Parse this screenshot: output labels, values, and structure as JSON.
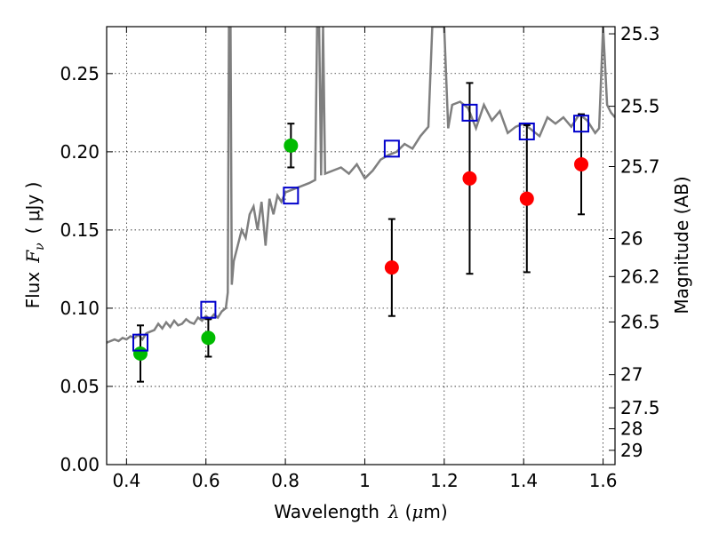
{
  "chart_data": {
    "type": "scatter",
    "xlabel": {
      "prefix": "Wavelength",
      "symbol": "λ",
      "unit_open": "(",
      "unit_mu": "μ",
      "unit_rest": "m)"
    },
    "ylabel": {
      "prefix": "Flux",
      "symbol": "F",
      "subscript": "ν",
      "unit": "( μJy )"
    },
    "y2label": "Magnitude (AB)",
    "xlim": [
      0.35,
      1.63
    ],
    "ylim": [
      0.0,
      0.28
    ],
    "xticks": [
      "0.4",
      "0.6",
      "0.8",
      "1",
      "1.2",
      "1.4",
      "1.6"
    ],
    "xtick_values": [
      0.4,
      0.6,
      0.8,
      1.0,
      1.2,
      1.4,
      1.6
    ],
    "yticks": [
      "0.00",
      "0.05",
      "0.10",
      "0.15",
      "0.20",
      "0.25"
    ],
    "ytick_values": [
      0.0,
      0.05,
      0.1,
      0.15,
      0.2,
      0.25
    ],
    "mag_ticks": [
      "25.3",
      "25.5",
      "25.7",
      "26",
      "26.2",
      "26.5",
      "27",
      "27.5",
      "28",
      "29"
    ],
    "mag_tick_values": [
      25.3,
      25.5,
      25.7,
      26,
      26.2,
      26.5,
      27,
      27.5,
      28,
      29
    ],
    "grid": true,
    "colors": {
      "green": "#00bb00",
      "red": "#ff0000",
      "blue": "#0000cc",
      "spectrum": "#7f7f7f",
      "errorbar": "#000000"
    },
    "series": [
      {
        "color": "green",
        "marker": "circle",
        "points": [
          {
            "x": 0.435,
            "y": 0.071,
            "err_lo": 0.018,
            "err_hi": 0.018
          },
          {
            "x": 0.606,
            "y": 0.081,
            "err_lo": 0.012,
            "err_hi": 0.012
          },
          {
            "x": 0.814,
            "y": 0.204,
            "err_lo": 0.014,
            "err_hi": 0.014
          }
        ]
      },
      {
        "color": "red",
        "marker": "circle",
        "points": [
          {
            "x": 1.068,
            "y": 0.126,
            "err_lo": 0.031,
            "err_hi": 0.031
          },
          {
            "x": 1.264,
            "y": 0.183,
            "err_lo": 0.061,
            "err_hi": 0.061
          },
          {
            "x": 1.408,
            "y": 0.17,
            "err_lo": 0.047,
            "err_hi": 0.047
          },
          {
            "x": 1.545,
            "y": 0.192,
            "err_lo": 0.032,
            "err_hi": 0.032
          }
        ]
      },
      {
        "color": "blue",
        "marker": "open-square",
        "points": [
          {
            "x": 0.435,
            "y": 0.078
          },
          {
            "x": 0.606,
            "y": 0.099
          },
          {
            "x": 0.814,
            "y": 0.172
          },
          {
            "x": 1.068,
            "y": 0.202
          },
          {
            "x": 1.264,
            "y": 0.225
          },
          {
            "x": 1.408,
            "y": 0.213
          },
          {
            "x": 1.545,
            "y": 0.218
          }
        ]
      },
      {
        "color": "spectrum",
        "marker": "line",
        "x": [
          0.35,
          0.36,
          0.37,
          0.38,
          0.39,
          0.4,
          0.41,
          0.42,
          0.43,
          0.44,
          0.45,
          0.46,
          0.47,
          0.48,
          0.49,
          0.5,
          0.51,
          0.52,
          0.53,
          0.54,
          0.55,
          0.56,
          0.57,
          0.58,
          0.59,
          0.6,
          0.61,
          0.62,
          0.63,
          0.64,
          0.65,
          0.655,
          0.658,
          0.662,
          0.665,
          0.67,
          0.68,
          0.69,
          0.7,
          0.71,
          0.72,
          0.73,
          0.74,
          0.75,
          0.76,
          0.77,
          0.78,
          0.79,
          0.8,
          0.82,
          0.84,
          0.86,
          0.875,
          0.88,
          0.885,
          0.89,
          0.895,
          0.9,
          0.92,
          0.94,
          0.96,
          0.98,
          1.0,
          1.02,
          1.04,
          1.06,
          1.08,
          1.1,
          1.12,
          1.14,
          1.16,
          1.17,
          1.18,
          1.19,
          1.2,
          1.21,
          1.22,
          1.24,
          1.26,
          1.28,
          1.3,
          1.32,
          1.34,
          1.36,
          1.38,
          1.4,
          1.42,
          1.44,
          1.46,
          1.48,
          1.5,
          1.52,
          1.54,
          1.56,
          1.58,
          1.59,
          1.6,
          1.61,
          1.62,
          1.63
        ],
        "y": [
          0.078,
          0.079,
          0.08,
          0.079,
          0.081,
          0.08,
          0.082,
          0.081,
          0.083,
          0.08,
          0.084,
          0.085,
          0.086,
          0.09,
          0.087,
          0.091,
          0.088,
          0.092,
          0.089,
          0.09,
          0.093,
          0.091,
          0.09,
          0.094,
          0.092,
          0.095,
          0.093,
          0.096,
          0.094,
          0.098,
          0.1,
          0.11,
          0.28,
          0.28,
          0.115,
          0.13,
          0.14,
          0.15,
          0.145,
          0.16,
          0.165,
          0.15,
          0.168,
          0.14,
          0.17,
          0.16,
          0.172,
          0.168,
          0.174,
          0.176,
          0.178,
          0.18,
          0.182,
          0.28,
          0.28,
          0.185,
          0.28,
          0.186,
          0.188,
          0.19,
          0.186,
          0.192,
          0.183,
          0.188,
          0.195,
          0.198,
          0.2,
          0.205,
          0.202,
          0.21,
          0.216,
          0.28,
          0.28,
          0.28,
          0.28,
          0.215,
          0.23,
          0.232,
          0.228,
          0.215,
          0.23,
          0.22,
          0.226,
          0.212,
          0.216,
          0.218,
          0.214,
          0.21,
          0.222,
          0.218,
          0.222,
          0.216,
          0.224,
          0.22,
          0.212,
          0.215,
          0.28,
          0.23,
          0.225,
          0.222
        ]
      }
    ]
  }
}
